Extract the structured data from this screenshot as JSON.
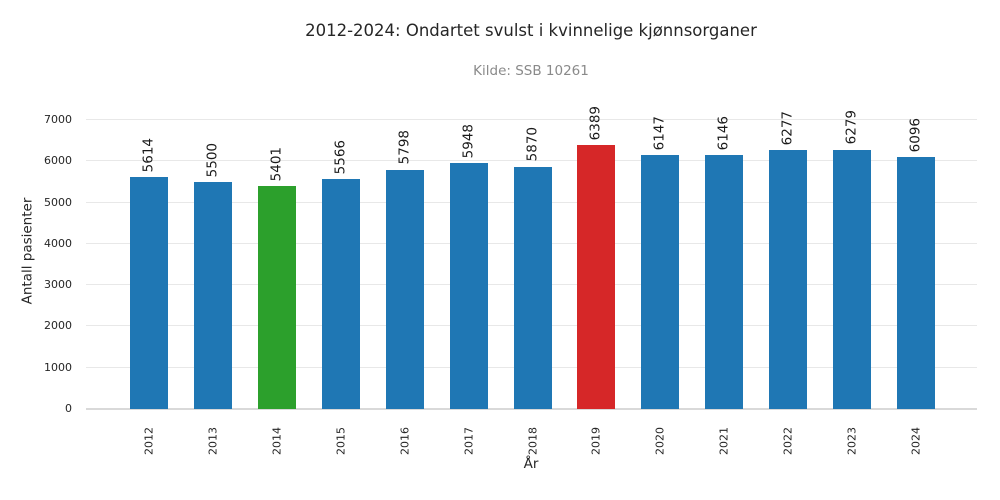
{
  "chart_data": {
    "type": "bar",
    "title": "2012-2024: Ondartet svulst i kvinnelige kjønnsorganer",
    "subtitle": "Kilde: SSB 10261",
    "xlabel": "År",
    "ylabel": "Antall pasienter",
    "categories": [
      "2012",
      "2013",
      "2014",
      "2015",
      "2016",
      "2017",
      "2018",
      "2019",
      "2020",
      "2021",
      "2022",
      "2023",
      "2024"
    ],
    "values": [
      5614,
      5500,
      5401,
      5566,
      5798,
      5948,
      5870,
      6389,
      6147,
      6146,
      6277,
      6279,
      6096
    ],
    "bar_colors": [
      "#1f77b4",
      "#1f77b4",
      "#2ca02c",
      "#1f77b4",
      "#1f77b4",
      "#1f77b4",
      "#1f77b4",
      "#d62728",
      "#1f77b4",
      "#1f77b4",
      "#1f77b4",
      "#1f77b4",
      "#1f77b4"
    ],
    "value_labels_shown": true,
    "ylim": [
      0,
      7000
    ],
    "yticks": [
      0,
      1000,
      2000,
      3000,
      4000,
      5000,
      6000,
      7000
    ],
    "grid": "horizontal",
    "legend": "none"
  },
  "colors": {
    "default_bar": "#1f77b4",
    "highlight_green": "#2ca02c",
    "highlight_red": "#d62728",
    "gridline": "#e8e8e8",
    "baseline": "#d9d9d9",
    "title_text": "#262626",
    "subtitle_text": "#8a8a8a",
    "background": "#ffffff"
  }
}
